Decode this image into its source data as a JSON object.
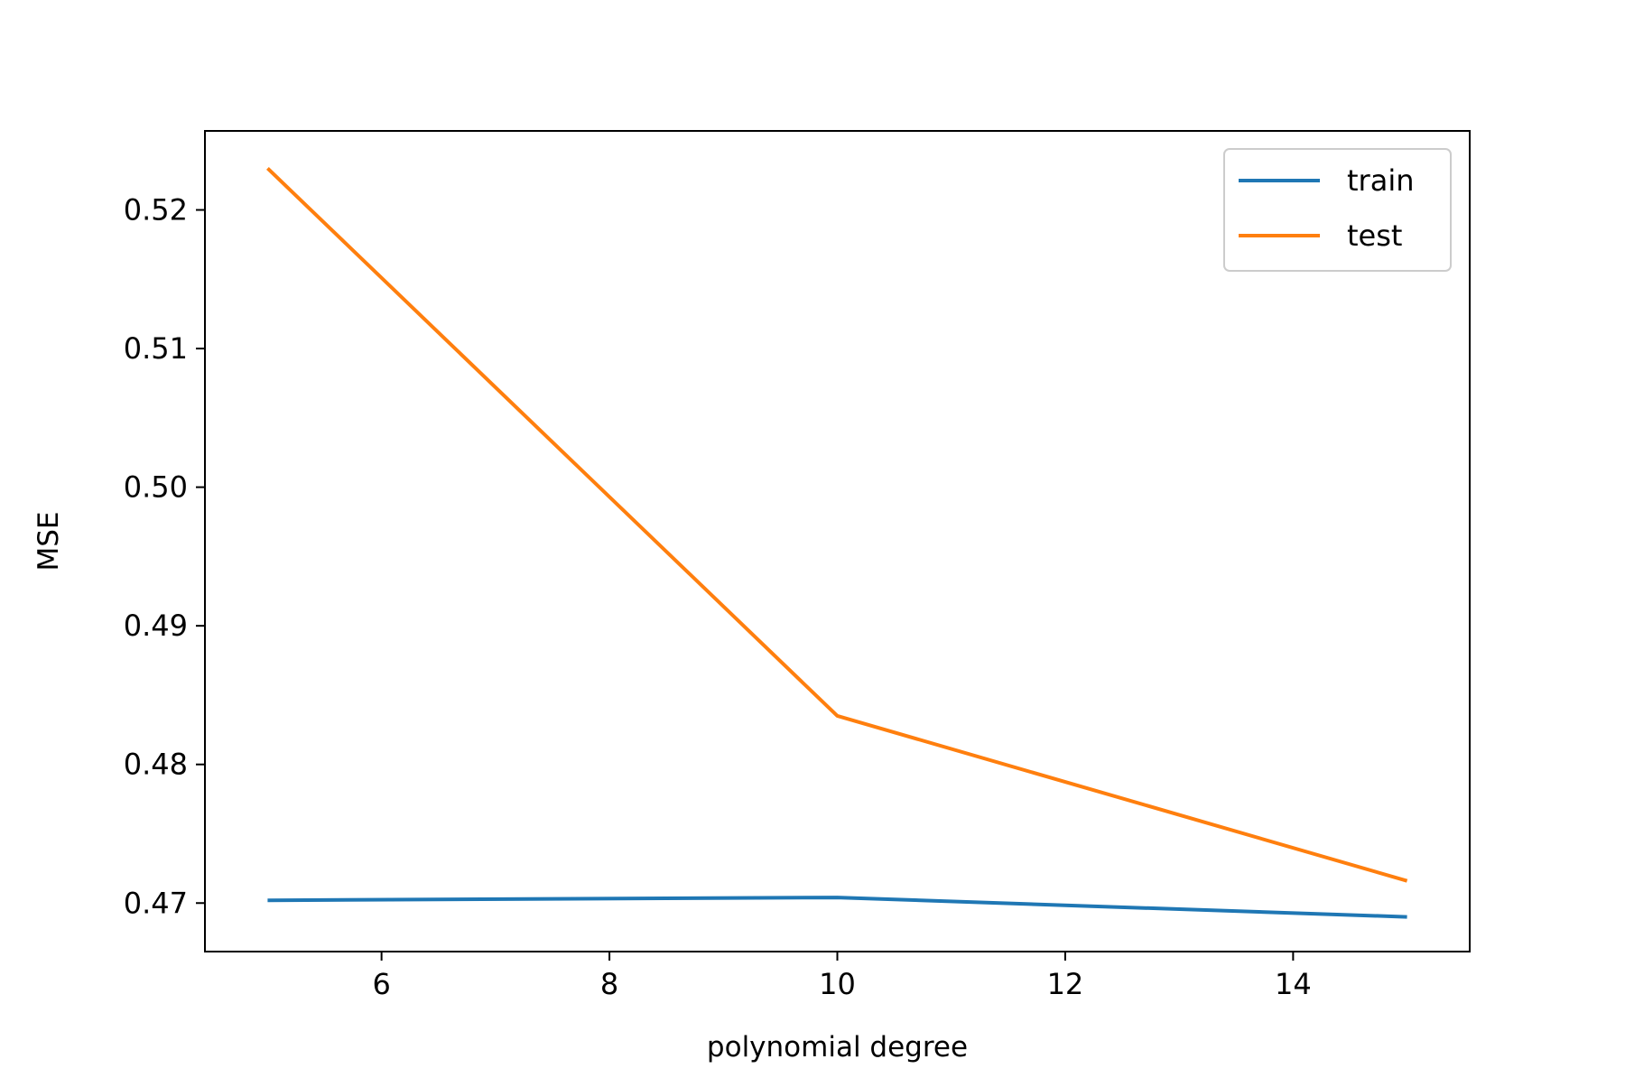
{
  "chart_data": {
    "type": "line",
    "title": "",
    "xlabel": "polynomial degree",
    "ylabel": "MSE",
    "x": [
      5,
      10,
      15
    ],
    "series": [
      {
        "name": "train",
        "color": "#1f77b4",
        "values": [
          0.4702,
          0.4704,
          0.469
        ]
      },
      {
        "name": "test",
        "color": "#ff7f0e",
        "values": [
          0.523,
          0.4835,
          0.4716
        ]
      }
    ],
    "xlim": [
      4.45,
      15.55
    ],
    "ylim": [
      0.4665,
      0.5257
    ],
    "xticks": [
      6,
      8,
      10,
      12,
      14
    ],
    "xtick_labels": [
      "6",
      "8",
      "10",
      "12",
      "14"
    ],
    "yticks": [
      0.47,
      0.48,
      0.49,
      0.5,
      0.51,
      0.52
    ],
    "ytick_labels": [
      "0.47",
      "0.48",
      "0.49",
      "0.50",
      "0.51",
      "0.52"
    ],
    "grid": false,
    "legend": {
      "placement": "upper right",
      "entries": [
        "train",
        "test"
      ]
    }
  }
}
